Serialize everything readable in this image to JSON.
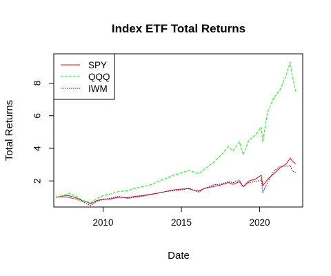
{
  "chart_data": {
    "type": "line",
    "title": "Index ETF Total Returns",
    "xlabel": "Date",
    "ylabel": "Total Returns",
    "xlim": [
      2006.85,
      2022.75
    ],
    "ylim": [
      0.4,
      9.8
    ],
    "x_ticks": [
      2010,
      2015,
      2020
    ],
    "x_tick_labels": [
      "2010",
      "2015",
      "2020"
    ],
    "y_ticks": [
      2,
      4,
      6,
      8
    ],
    "y_tick_labels": [
      "2",
      "4",
      "6",
      "8"
    ],
    "grid": false,
    "legend_position": "top-left",
    "series": [
      {
        "name": "SPY",
        "color": "#ff0000",
        "line_style": "solid",
        "x": [
          2007.0,
          2007.5,
          2007.8,
          2008.3,
          2008.7,
          2009.0,
          2009.2,
          2009.6,
          2010.0,
          2010.5,
          2011.0,
          2011.6,
          2012.0,
          2012.5,
          2013.0,
          2013.5,
          2014.0,
          2014.5,
          2015.0,
          2015.5,
          2015.8,
          2016.1,
          2016.5,
          2017.0,
          2017.5,
          2018.0,
          2018.3,
          2018.7,
          2018.95,
          2019.3,
          2019.7,
          2020.1,
          2020.2,
          2020.5,
          2020.9,
          2021.3,
          2021.7,
          2021.95,
          2022.1,
          2022.3
        ],
        "y": [
          1.0,
          1.08,
          1.1,
          0.95,
          0.78,
          0.7,
          0.6,
          0.8,
          0.88,
          0.9,
          1.0,
          0.97,
          1.05,
          1.1,
          1.18,
          1.25,
          1.35,
          1.45,
          1.5,
          1.52,
          1.42,
          1.38,
          1.55,
          1.65,
          1.75,
          1.9,
          1.8,
          1.95,
          1.65,
          2.0,
          2.1,
          2.35,
          1.7,
          2.1,
          2.45,
          2.8,
          3.05,
          3.4,
          3.2,
          3.05
        ]
      },
      {
        "name": "QQQ",
        "color": "#00ff00",
        "line_style": "dashed",
        "x": [
          2007.0,
          2007.5,
          2007.8,
          2008.3,
          2008.7,
          2009.0,
          2009.2,
          2009.6,
          2010.0,
          2010.5,
          2011.0,
          2011.6,
          2012.0,
          2012.5,
          2013.0,
          2013.5,
          2014.0,
          2014.5,
          2015.0,
          2015.5,
          2015.8,
          2016.1,
          2016.5,
          2017.0,
          2017.5,
          2018.0,
          2018.3,
          2018.7,
          2018.95,
          2019.3,
          2019.7,
          2020.1,
          2020.2,
          2020.5,
          2020.9,
          2021.3,
          2021.7,
          2021.95,
          2022.1,
          2022.3
        ],
        "y": [
          1.0,
          1.12,
          1.25,
          1.05,
          0.8,
          0.72,
          0.65,
          0.92,
          1.1,
          1.2,
          1.35,
          1.4,
          1.55,
          1.65,
          1.75,
          1.95,
          2.15,
          2.35,
          2.5,
          2.65,
          2.55,
          2.45,
          2.75,
          3.1,
          3.55,
          4.1,
          3.85,
          4.4,
          3.6,
          4.5,
          4.8,
          5.3,
          4.4,
          6.2,
          7.1,
          7.6,
          8.5,
          9.3,
          8.4,
          7.5
        ]
      },
      {
        "name": "IWM",
        "color": "#0000ff",
        "line_style": "dotted",
        "x": [
          2007.0,
          2007.5,
          2007.8,
          2008.3,
          2008.7,
          2009.0,
          2009.2,
          2009.6,
          2010.0,
          2010.5,
          2011.0,
          2011.6,
          2012.0,
          2012.5,
          2013.0,
          2013.5,
          2014.0,
          2014.5,
          2015.0,
          2015.5,
          2015.8,
          2016.1,
          2016.5,
          2017.0,
          2017.5,
          2018.0,
          2018.3,
          2018.7,
          2018.95,
          2019.3,
          2019.7,
          2020.1,
          2020.2,
          2020.5,
          2020.9,
          2021.3,
          2021.7,
          2021.95,
          2022.1,
          2022.3
        ],
        "y": [
          1.0,
          1.02,
          0.98,
          0.88,
          0.72,
          0.58,
          0.5,
          0.75,
          0.85,
          0.95,
          1.05,
          0.92,
          1.0,
          1.05,
          1.15,
          1.25,
          1.35,
          1.4,
          1.45,
          1.55,
          1.42,
          1.32,
          1.55,
          1.75,
          1.8,
          1.95,
          1.9,
          2.05,
          1.65,
          1.9,
          1.95,
          2.05,
          1.3,
          1.9,
          2.6,
          2.9,
          2.9,
          2.95,
          2.6,
          2.5
        ]
      }
    ]
  }
}
